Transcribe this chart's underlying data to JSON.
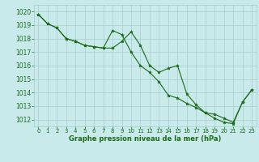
{
  "series1_x": [
    0,
    1,
    2,
    3,
    4,
    5,
    6,
    7,
    8,
    9,
    10,
    11,
    12,
    13,
    14,
    15,
    16,
    17,
    18,
    19,
    20,
    21,
    22,
    23
  ],
  "series1_y": [
    1019.8,
    1019.1,
    1018.8,
    1018.0,
    1017.8,
    1017.5,
    1017.4,
    1017.3,
    1018.6,
    1018.3,
    1017.0,
    1016.0,
    1015.5,
    1014.8,
    1013.8,
    1013.6,
    1013.2,
    1012.9,
    1012.5,
    1012.4,
    1012.1,
    1011.8,
    1013.3,
    1014.2
  ],
  "series2_x": [
    0,
    1,
    2,
    3,
    4,
    5,
    6,
    7,
    8,
    9,
    10,
    11,
    12,
    13,
    14,
    15,
    16,
    17,
    18,
    19,
    20,
    21,
    22,
    23
  ],
  "series2_y": [
    1019.8,
    1019.1,
    1018.8,
    1018.0,
    1017.8,
    1017.5,
    1017.4,
    1017.3,
    1017.3,
    1017.8,
    1018.5,
    1017.5,
    1016.0,
    1015.5,
    1015.8,
    1016.0,
    1013.9,
    1013.1,
    1012.5,
    1012.1,
    1011.8,
    1011.7,
    1013.3,
    1014.2
  ],
  "line_color": "#1a6b1a",
  "marker_color": "#1a6b1a",
  "bg_color": "#c8eaea",
  "grid_color": "#a8cccc",
  "text_color": "#1a6b1a",
  "xlabel": "Graphe pression niveau de la mer (hPa)",
  "ylim": [
    1011.5,
    1020.5
  ],
  "xlim": [
    -0.5,
    23.5
  ],
  "yticks": [
    1012,
    1013,
    1014,
    1015,
    1016,
    1017,
    1018,
    1019,
    1020
  ],
  "xticks": [
    0,
    1,
    2,
    3,
    4,
    5,
    6,
    7,
    8,
    9,
    10,
    11,
    12,
    13,
    14,
    15,
    16,
    17,
    18,
    19,
    20,
    21,
    22,
    23
  ]
}
